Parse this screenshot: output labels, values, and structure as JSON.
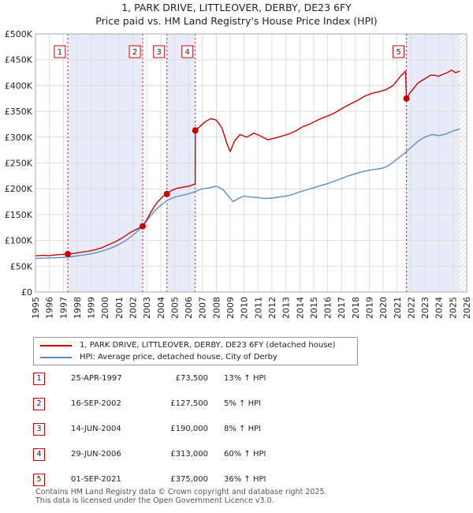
{
  "title": "1, PARK DRIVE, LITTLEOVER, DERBY, DE23 6FY",
  "subtitle": "Price paid vs. HM Land Registry's House Price Index (HPI)",
  "chart_data": {
    "type": "line",
    "xlim": [
      1995,
      2026
    ],
    "ylim": [
      0,
      500000
    ],
    "y_ticks": [
      0,
      50000,
      100000,
      150000,
      200000,
      250000,
      300000,
      350000,
      400000,
      450000,
      500000
    ],
    "y_tick_labels": [
      "£0",
      "£50K",
      "£100K",
      "£150K",
      "£200K",
      "£250K",
      "£300K",
      "£350K",
      "£400K",
      "£450K",
      "£500K"
    ],
    "x_ticks": [
      1995,
      1996,
      1997,
      1998,
      1999,
      2000,
      2001,
      2002,
      2003,
      2004,
      2005,
      2006,
      2007,
      2008,
      2009,
      2010,
      2011,
      2012,
      2013,
      2014,
      2015,
      2016,
      2017,
      2018,
      2019,
      2020,
      2021,
      2022,
      2023,
      2024,
      2025,
      2026
    ],
    "x_tick_labels": [
      "1995",
      "1996",
      "1997",
      "1998",
      "1999",
      "2000",
      "2001",
      "2002",
      "2003",
      "2004",
      "2005",
      "2006",
      "2007",
      "2008",
      "2009",
      "2010",
      "2011",
      "2012",
      "2013",
      "2014",
      "2015",
      "2016",
      "2017",
      "2018",
      "2019",
      "2020",
      "2021",
      "2022",
      "2023",
      "2024",
      "2025",
      "2026"
    ],
    "shaded_spans": [
      [
        1997.32,
        2002.71
      ],
      [
        2004.45,
        2006.49
      ],
      [
        2021.67,
        2025.5
      ]
    ],
    "hatched_span": [
      2025.5,
      2026
    ],
    "series": [
      {
        "name": "1, PARK DRIVE, LITTLEOVER, DERBY, DE23 6FY (detached house)",
        "color": "#cc0000",
        "x": [
          1995.0,
          1995.5,
          1996.0,
          1996.5,
          1997.0,
          1997.32,
          1997.8,
          1998.3,
          1998.8,
          1999.3,
          1999.8,
          2000.3,
          2000.8,
          2001.3,
          2001.8,
          2002.3,
          2002.71,
          2003.0,
          2003.3,
          2003.6,
          2003.9,
          2004.2,
          2004.45,
          2004.8,
          2005.2,
          2005.6,
          2006.0,
          2006.35,
          2006.48,
          2006.49,
          2006.8,
          2007.2,
          2007.6,
          2008.0,
          2008.4,
          2008.8,
          2009.0,
          2009.3,
          2009.7,
          2010.2,
          2010.7,
          2011.2,
          2011.7,
          2012.2,
          2012.7,
          2013.2,
          2013.7,
          2014.2,
          2014.7,
          2015.2,
          2015.7,
          2016.2,
          2016.7,
          2017.2,
          2017.7,
          2018.2,
          2018.7,
          2019.2,
          2019.7,
          2020.2,
          2020.7,
          2021.0,
          2021.3,
          2021.5,
          2021.6,
          2021.67,
          2021.9,
          2022.2,
          2022.5,
          2022.8,
          2023.1,
          2023.4,
          2023.7,
          2024.0,
          2024.3,
          2024.6,
          2024.9,
          2025.2,
          2025.5
        ],
        "values": [
          70000,
          71000,
          70500,
          72000,
          73000,
          73500,
          75000,
          77000,
          79000,
          82000,
          86000,
          92000,
          98000,
          106000,
          115000,
          122000,
          127500,
          140000,
          155000,
          168000,
          178000,
          186000,
          190000,
          197000,
          201000,
          203000,
          205000,
          208000,
          210000,
          313000,
          320000,
          330000,
          336000,
          333000,
          318000,
          285000,
          272000,
          292000,
          305000,
          300000,
          308000,
          302000,
          295000,
          298000,
          302000,
          306000,
          312000,
          320000,
          325000,
          332000,
          338000,
          343000,
          350000,
          358000,
          365000,
          372000,
          380000,
          385000,
          388000,
          392000,
          400000,
          410000,
          420000,
          425000,
          428000,
          375000,
          385000,
          395000,
          405000,
          410000,
          415000,
          420000,
          420000,
          418000,
          422000,
          425000,
          430000,
          425000,
          428000
        ]
      },
      {
        "name": "HPI: Average price, detached house, City of Derby",
        "color": "#5b8ec9",
        "x": [
          1995.0,
          1995.5,
          1996.0,
          1996.5,
          1997.0,
          1997.5,
          1998.0,
          1998.5,
          1999.0,
          1999.5,
          2000.0,
          2000.5,
          2001.0,
          2001.5,
          2002.0,
          2002.5,
          2003.0,
          2003.5,
          2004.0,
          2004.5,
          2005.0,
          2005.5,
          2006.0,
          2006.5,
          2007.0,
          2007.5,
          2008.0,
          2008.5,
          2009.0,
          2009.2,
          2009.5,
          2010.0,
          2010.5,
          2011.0,
          2011.5,
          2012.0,
          2012.5,
          2013.0,
          2013.5,
          2014.0,
          2014.5,
          2015.0,
          2015.5,
          2016.0,
          2016.5,
          2017.0,
          2017.5,
          2018.0,
          2018.5,
          2019.0,
          2019.5,
          2020.0,
          2020.5,
          2021.0,
          2021.5,
          2022.0,
          2022.5,
          2023.0,
          2023.5,
          2024.0,
          2024.5,
          2025.0,
          2025.5
        ],
        "values": [
          65000,
          65500,
          66000,
          66500,
          67000,
          68000,
          70000,
          72000,
          74000,
          77000,
          81000,
          86000,
          92000,
          100000,
          110000,
          122000,
          138000,
          155000,
          168000,
          178000,
          184000,
          187000,
          190000,
          195000,
          200000,
          202000,
          205000,
          198000,
          182000,
          175000,
          180000,
          186000,
          184000,
          183000,
          181000,
          182000,
          184000,
          186000,
          189000,
          194000,
          198000,
          202000,
          206000,
          210000,
          215000,
          220000,
          225000,
          229000,
          233000,
          236000,
          238000,
          240000,
          247000,
          258000,
          268000,
          280000,
          292000,
          300000,
          305000,
          303000,
          306000,
          312000,
          316000
        ]
      }
    ],
    "sales": [
      {
        "id": "1",
        "x": 1997.32,
        "y": 73500
      },
      {
        "id": "2",
        "x": 2002.71,
        "y": 127500
      },
      {
        "id": "3",
        "x": 2004.45,
        "y": 190000
      },
      {
        "id": "4",
        "x": 2006.49,
        "y": 313000
      },
      {
        "id": "5",
        "x": 2021.67,
        "y": 375000
      }
    ]
  },
  "legend": {
    "red_label": "1, PARK DRIVE, LITTLEOVER, DERBY, DE23 6FY (detached house)",
    "blue_label": "HPI: Average price, detached house, City of Derby"
  },
  "sales_table": [
    {
      "num": "1",
      "date": "25-APR-1997",
      "price": "£73,500",
      "hpi": "13% ↑ HPI"
    },
    {
      "num": "2",
      "date": "16-SEP-2002",
      "price": "£127,500",
      "hpi": "5% ↑ HPI"
    },
    {
      "num": "3",
      "date": "14-JUN-2004",
      "price": "£190,000",
      "hpi": "8% ↑ HPI"
    },
    {
      "num": "4",
      "date": "29-JUN-2006",
      "price": "£313,000",
      "hpi": "60% ↑ HPI"
    },
    {
      "num": "5",
      "date": "01-SEP-2021",
      "price": "£375,000",
      "hpi": "36% ↑ HPI"
    }
  ],
  "footer": {
    "line1": "Contains HM Land Registry data © Crown copyright and database right 2025.",
    "line2": "This data is licensed under the Open Government Licence v3.0."
  }
}
